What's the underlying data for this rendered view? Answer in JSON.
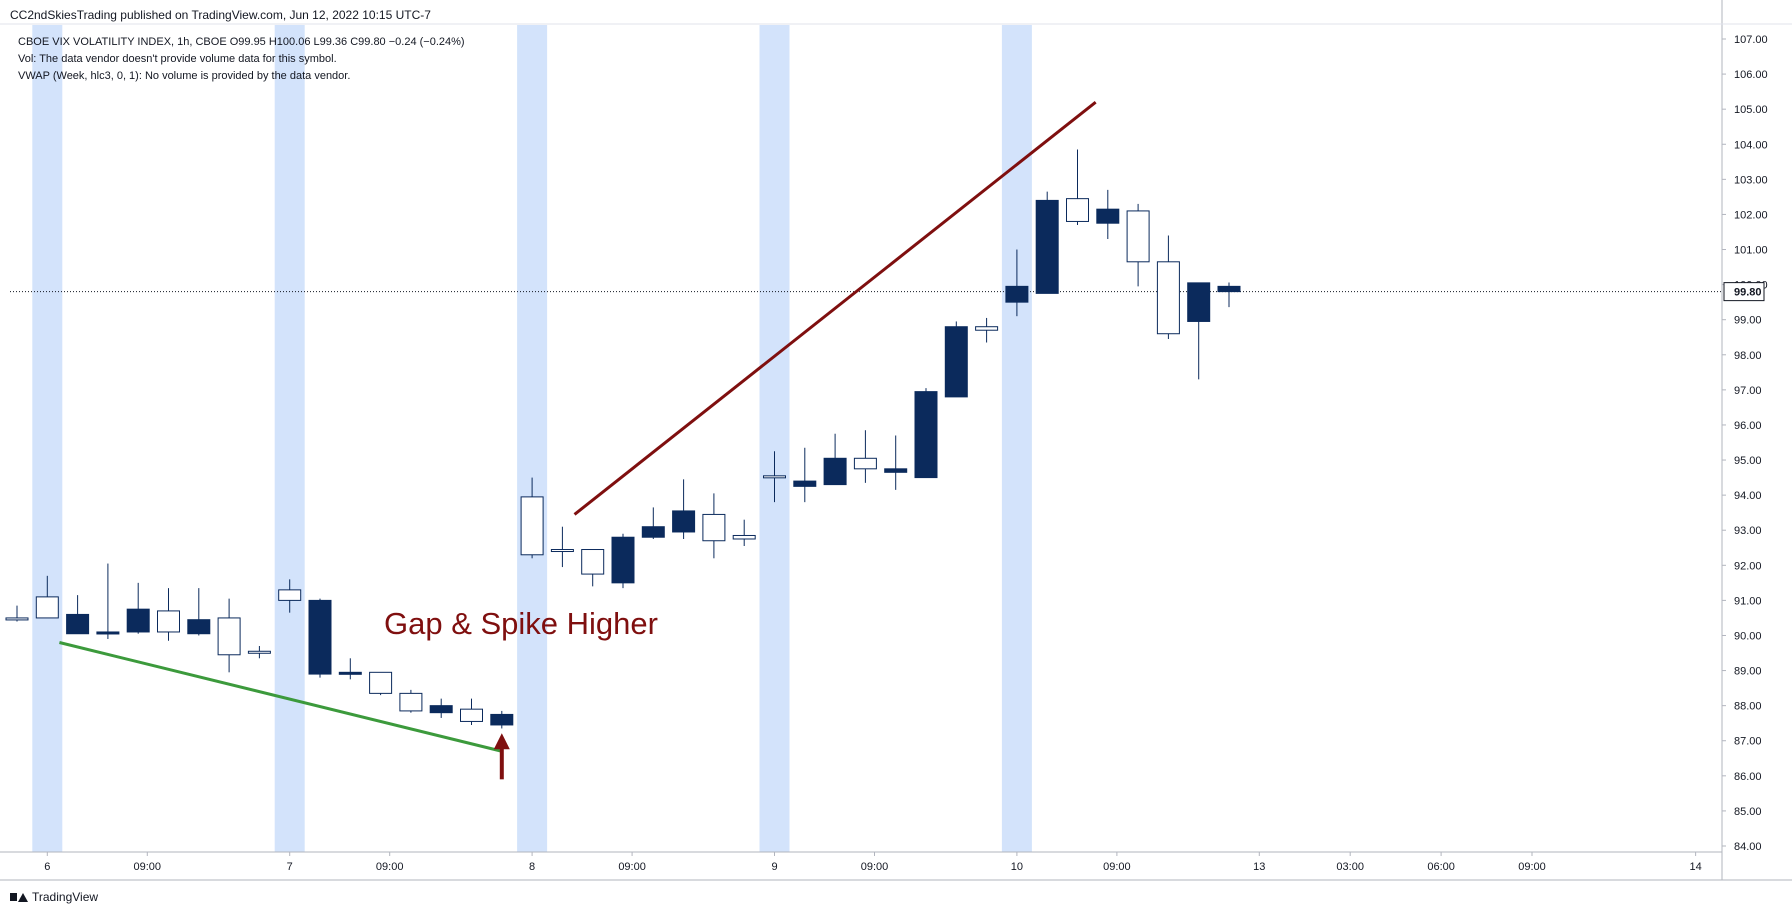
{
  "header": {
    "publisher_line": "CC2ndSkiesTrading published on TradingView.com, Jun 12, 2022 10:15 UTC-7",
    "symbol_line": "CBOE VIX VOLATILITY INDEX, 1h, CBOE  O99.95  H100.06  L99.36  C99.80  −0.24 (−0.24%)",
    "volume_line": "Vol: The data vendor doesn't provide volume data for this symbol.",
    "vwap_line": "VWAP (Week, hlc3, 0, 1): No volume is provided by the data vendor."
  },
  "footer": {
    "brand": "TradingView"
  },
  "colors": {
    "bull_fill": "#ffffff",
    "bear_fill": "#0b2a5c",
    "wick": "#0b2a5c",
    "session_band": "#d3e3fb",
    "annotation": "#7f0f0f",
    "trendline_down": "#3c9a3c",
    "price_line": "#131722"
  },
  "chart_data": {
    "type": "candlestick",
    "ylim": [
      84,
      107
    ],
    "y_ticks": [
      "84.00",
      "85.00",
      "86.00",
      "87.00",
      "88.00",
      "89.00",
      "90.00",
      "91.00",
      "92.00",
      "93.00",
      "94.00",
      "95.00",
      "96.00",
      "97.00",
      "98.00",
      "99.00",
      "100.00",
      "101.00",
      "102.00",
      "103.00",
      "104.00",
      "105.00",
      "106.00",
      "107.00"
    ],
    "x_ticks": [
      {
        "label": "6",
        "i": 1
      },
      {
        "label": "09:00",
        "i": 4.3
      },
      {
        "label": "7",
        "i": 9
      },
      {
        "label": "09:00",
        "i": 12.3
      },
      {
        "label": "8",
        "i": 17
      },
      {
        "label": "09:00",
        "i": 20.3
      },
      {
        "label": "9",
        "i": 25
      },
      {
        "label": "09:00",
        "i": 28.3
      },
      {
        "label": "10",
        "i": 33
      },
      {
        "label": "09:00",
        "i": 36.3
      },
      {
        "label": "13",
        "i": 41
      },
      {
        "label": "03:00",
        "i": 44
      },
      {
        "label": "06:00",
        "i": 47
      },
      {
        "label": "09:00",
        "i": 50
      },
      {
        "label": "14",
        "i": 55.4
      }
    ],
    "session_starts": [
      1,
      9,
      17,
      25,
      33
    ],
    "last_price": 99.8,
    "last_price_label": "99.80",
    "candles": [
      {
        "o": 90.5,
        "h": 90.85,
        "l": 90.4,
        "c": 90.5
      },
      {
        "o": 90.5,
        "h": 91.7,
        "l": 90.5,
        "c": 91.1
      },
      {
        "o": 90.6,
        "h": 91.15,
        "l": 90.05,
        "c": 90.05
      },
      {
        "o": 90.1,
        "h": 92.05,
        "l": 89.9,
        "c": 90.05
      },
      {
        "o": 90.75,
        "h": 91.5,
        "l": 90.05,
        "c": 90.1
      },
      {
        "o": 90.1,
        "h": 91.35,
        "l": 89.85,
        "c": 90.7
      },
      {
        "o": 90.45,
        "h": 91.35,
        "l": 90.0,
        "c": 90.05
      },
      {
        "o": 89.45,
        "h": 91.05,
        "l": 88.95,
        "c": 90.5
      },
      {
        "o": 89.55,
        "h": 89.7,
        "l": 89.35,
        "c": 89.55
      },
      {
        "o": 91.0,
        "h": 91.6,
        "l": 90.65,
        "c": 91.3
      },
      {
        "o": 91.0,
        "h": 91.05,
        "l": 88.8,
        "c": 88.9
      },
      {
        "o": 88.95,
        "h": 89.35,
        "l": 88.75,
        "c": 88.9
      },
      {
        "o": 88.35,
        "h": 88.95,
        "l": 88.3,
        "c": 88.95
      },
      {
        "o": 87.85,
        "h": 88.45,
        "l": 87.8,
        "c": 88.35
      },
      {
        "o": 88.0,
        "h": 88.2,
        "l": 87.65,
        "c": 87.8
      },
      {
        "o": 87.55,
        "h": 88.2,
        "l": 87.45,
        "c": 87.9
      },
      {
        "o": 87.75,
        "h": 87.85,
        "l": 87.35,
        "c": 87.45
      },
      {
        "o": 92.3,
        "h": 94.5,
        "l": 92.2,
        "c": 93.95
      },
      {
        "o": 92.4,
        "h": 93.1,
        "l": 91.95,
        "c": 92.45
      },
      {
        "o": 91.75,
        "h": 92.45,
        "l": 91.4,
        "c": 92.45
      },
      {
        "o": 92.8,
        "h": 92.9,
        "l": 91.35,
        "c": 91.5
      },
      {
        "o": 93.1,
        "h": 93.65,
        "l": 92.75,
        "c": 92.8
      },
      {
        "o": 93.55,
        "h": 94.45,
        "l": 92.75,
        "c": 92.95
      },
      {
        "o": 92.7,
        "h": 94.05,
        "l": 92.2,
        "c": 93.45
      },
      {
        "o": 92.75,
        "h": 93.3,
        "l": 92.55,
        "c": 92.85
      },
      {
        "o": 94.5,
        "h": 95.25,
        "l": 93.8,
        "c": 94.55
      },
      {
        "o": 94.4,
        "h": 95.35,
        "l": 93.8,
        "c": 94.25
      },
      {
        "o": 95.05,
        "h": 95.75,
        "l": 94.3,
        "c": 94.3
      },
      {
        "o": 94.75,
        "h": 95.85,
        "l": 94.35,
        "c": 95.05
      },
      {
        "o": 94.75,
        "h": 95.7,
        "l": 94.15,
        "c": 94.65
      },
      {
        "o": 96.95,
        "h": 97.05,
        "l": 94.5,
        "c": 94.5
      },
      {
        "o": 98.8,
        "h": 98.95,
        "l": 96.8,
        "c": 96.8
      },
      {
        "o": 98.7,
        "h": 99.05,
        "l": 98.35,
        "c": 98.8
      },
      {
        "o": 99.95,
        "h": 101.0,
        "l": 99.1,
        "c": 99.5
      },
      {
        "o": 102.4,
        "h": 102.65,
        "l": 99.75,
        "c": 99.75
      },
      {
        "o": 101.8,
        "h": 103.85,
        "l": 101.7,
        "c": 102.45
      },
      {
        "o": 102.15,
        "h": 102.7,
        "l": 101.3,
        "c": 101.75
      },
      {
        "o": 100.65,
        "h": 102.3,
        "l": 99.95,
        "c": 102.1
      },
      {
        "o": 98.6,
        "h": 101.4,
        "l": 98.45,
        "c": 100.65
      },
      {
        "o": 100.05,
        "h": 100.05,
        "l": 97.3,
        "c": 98.95
      },
      {
        "o": 99.95,
        "h": 100.06,
        "l": 99.36,
        "c": 99.8
      }
    ],
    "annotations": {
      "text": "Gap & Spike Higher",
      "trendline_up": {
        "i1": 18.4,
        "v1": 93.45,
        "i2": 35.6,
        "v2": 105.2
      },
      "trendline_down": {
        "i1": 1.4,
        "v1": 89.8,
        "i2": 16.0,
        "v2": 86.7
      },
      "arrow": {
        "i": 16.0,
        "v_from": 85.9,
        "v_to": 87.1
      }
    }
  }
}
